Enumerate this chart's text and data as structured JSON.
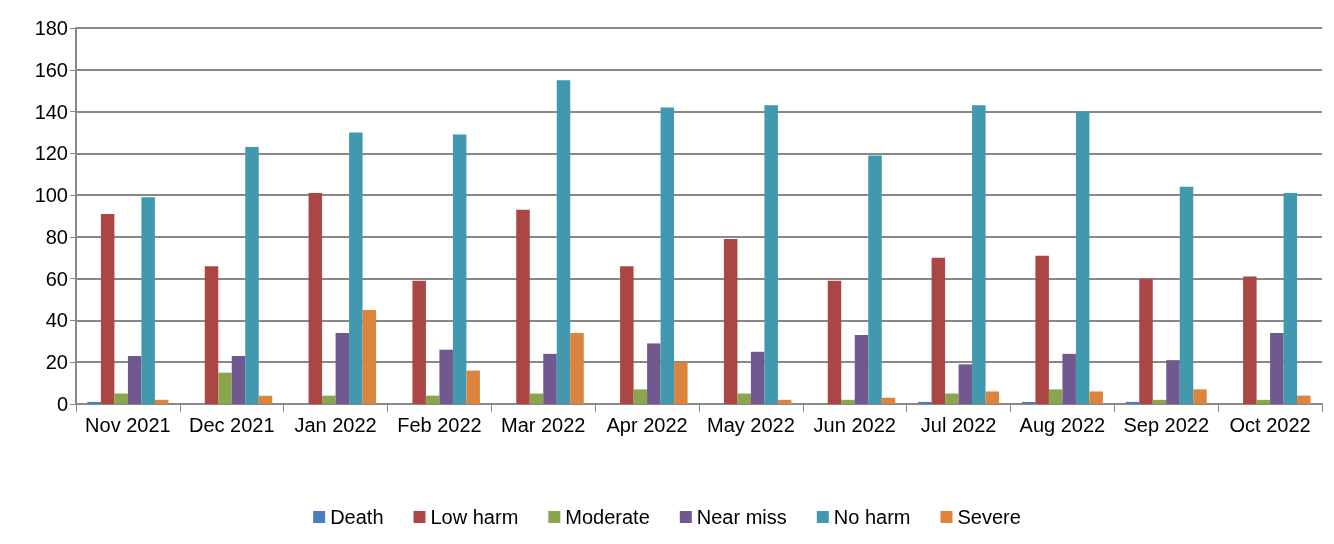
{
  "chart_data": {
    "type": "bar",
    "categories": [
      "Nov 2021",
      "Dec 2021",
      "Jan 2022",
      "Feb 2022",
      "Mar 2022",
      "Apr 2022",
      "May 2022",
      "Jun 2022",
      "Jul 2022",
      "Aug 2022",
      "Sep 2022",
      "Oct 2022"
    ],
    "series": [
      {
        "name": "Death",
        "color": "#4a7ebb",
        "values": [
          1,
          0,
          0,
          0,
          0,
          0,
          0,
          0,
          1,
          1,
          1,
          0
        ]
      },
      {
        "name": "Low harm",
        "color": "#aa4643",
        "values": [
          91,
          66,
          101,
          59,
          93,
          66,
          79,
          59,
          70,
          71,
          60,
          61
        ]
      },
      {
        "name": "Moderate",
        "color": "#89a54e",
        "values": [
          5,
          15,
          4,
          4,
          5,
          7,
          5,
          2,
          5,
          7,
          2,
          2
        ]
      },
      {
        "name": "Near miss",
        "color": "#71588f",
        "values": [
          23,
          23,
          34,
          26,
          24,
          29,
          25,
          33,
          19,
          24,
          21,
          34
        ]
      },
      {
        "name": "No harm",
        "color": "#4198af",
        "values": [
          99,
          123,
          130,
          129,
          155,
          142,
          143,
          119,
          143,
          140,
          104,
          101
        ]
      },
      {
        "name": "Severe",
        "color": "#db843d",
        "values": [
          2,
          4,
          45,
          16,
          34,
          20,
          2,
          3,
          6,
          6,
          7,
          4
        ]
      }
    ],
    "ylim": [
      0,
      180
    ],
    "yticks": [
      0,
      20,
      40,
      60,
      80,
      100,
      120,
      140,
      160,
      180
    ],
    "grid": "y",
    "legend": "bottom"
  }
}
